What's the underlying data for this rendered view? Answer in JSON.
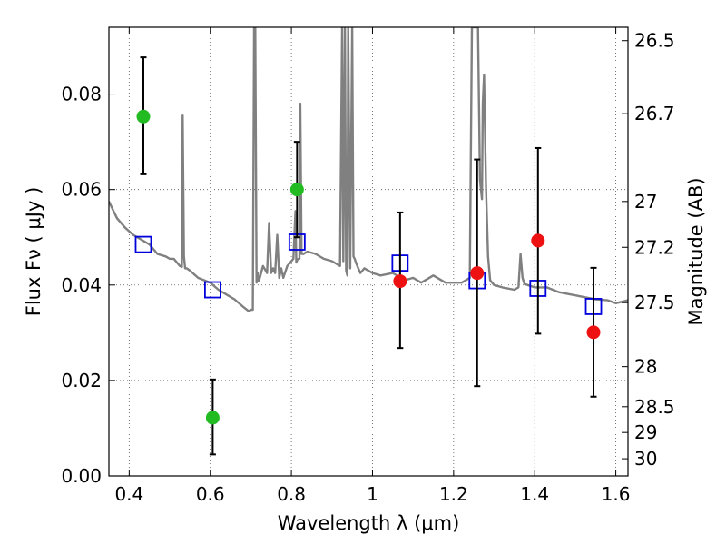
{
  "chart_data": {
    "type": "scatter",
    "xlabel": "Wavelength  λ (μm)",
    "ylabel": "Flux  Fν  ( μJy )",
    "y2label": "Magnitude (AB)",
    "xlim": [
      0.35,
      1.63
    ],
    "ylim": [
      0.0,
      0.094
    ],
    "x_ticks": [
      0.4,
      0.6,
      0.8,
      1.0,
      1.2,
      1.4,
      1.6
    ],
    "x_tick_labels": [
      "0.4",
      "0.6",
      "0.8",
      "1",
      "1.2",
      "1.4",
      "1.6"
    ],
    "y_ticks": [
      0.0,
      0.02,
      0.04,
      0.06,
      0.08
    ],
    "y_tick_labels": [
      "0.00",
      "0.02",
      "0.04",
      "0.06",
      "0.08"
    ],
    "y2_ticks": [
      {
        "flux": 0.0912,
        "label": "26.5"
      },
      {
        "flux": 0.0759,
        "label": "26.7"
      },
      {
        "flux": 0.0575,
        "label": "27"
      },
      {
        "flux": 0.0479,
        "label": "27.2"
      },
      {
        "flux": 0.0363,
        "label": "27.5"
      },
      {
        "flux": 0.0229,
        "label": "28"
      },
      {
        "flux": 0.0145,
        "label": "28.5"
      },
      {
        "flux": 0.0091,
        "label": "29"
      },
      {
        "flux": 0.0036,
        "label": "30"
      }
    ],
    "grid": true,
    "colors": {
      "model": "#808080",
      "green": "#22bb22",
      "red": "#ee1111",
      "blue_square": "#0000dd",
      "errorbar": "#000000"
    },
    "series": [
      {
        "style": "model-spectrum-line",
        "x": [
          0.35,
          0.37,
          0.39,
          0.41,
          0.43,
          0.45,
          0.47,
          0.49,
          0.5,
          0.51,
          0.525,
          0.53,
          0.532,
          0.535,
          0.538,
          0.542,
          0.55,
          0.57,
          0.6,
          0.62,
          0.64,
          0.66,
          0.68,
          0.695,
          0.7,
          0.705,
          0.708,
          0.711,
          0.714,
          0.717,
          0.72,
          0.73,
          0.74,
          0.745,
          0.75,
          0.755,
          0.76,
          0.765,
          0.77,
          0.775,
          0.78,
          0.79,
          0.8,
          0.805,
          0.81,
          0.812,
          0.815,
          0.82,
          0.822,
          0.825,
          0.83,
          0.835,
          0.84,
          0.86,
          0.88,
          0.9,
          0.92,
          0.925,
          0.928,
          0.932,
          0.935,
          0.938,
          0.94,
          0.945,
          0.95,
          0.953,
          0.956,
          0.96,
          0.965,
          0.97,
          0.98,
          1.0,
          1.02,
          1.05,
          1.08,
          1.1,
          1.12,
          1.15,
          1.18,
          1.2,
          1.22,
          1.24,
          1.245,
          1.25,
          1.255,
          1.26,
          1.265,
          1.27,
          1.272,
          1.275,
          1.28,
          1.285,
          1.29,
          1.3,
          1.32,
          1.35,
          1.36,
          1.365,
          1.37,
          1.375,
          1.4,
          1.43,
          1.46,
          1.49,
          1.52,
          1.55,
          1.58,
          1.6,
          1.63
        ],
        "y": [
          0.0575,
          0.054,
          0.052,
          0.0505,
          0.0495,
          0.0485,
          0.0465,
          0.046,
          0.0455,
          0.0455,
          0.044,
          0.0438,
          0.0755,
          0.046,
          0.0435,
          0.0435,
          0.043,
          0.0415,
          0.0405,
          0.039,
          0.038,
          0.037,
          0.0355,
          0.0345,
          0.0348,
          0.0348,
          0.094,
          0.094,
          0.0405,
          0.0425,
          0.0408,
          0.044,
          0.0425,
          0.053,
          0.0425,
          0.0435,
          0.0425,
          0.0505,
          0.0415,
          0.0435,
          0.0415,
          0.044,
          0.045,
          0.0455,
          0.0555,
          0.0447,
          0.0454,
          0.0455,
          0.078,
          0.0465,
          0.0465,
          0.0468,
          0.047,
          0.0465,
          0.0455,
          0.045,
          0.044,
          0.094,
          0.045,
          0.094,
          0.043,
          0.042,
          0.094,
          0.0435,
          0.094,
          0.046,
          0.0455,
          0.0445,
          0.0435,
          0.0425,
          0.0435,
          0.0425,
          0.042,
          0.0425,
          0.041,
          0.0415,
          0.0405,
          0.042,
          0.0405,
          0.0405,
          0.0405,
          0.0415,
          0.094,
          0.094,
          0.094,
          0.094,
          0.062,
          0.058,
          0.078,
          0.084,
          0.06,
          0.046,
          0.041,
          0.04,
          0.0395,
          0.039,
          0.0395,
          0.0465,
          0.0415,
          0.0402,
          0.0395,
          0.0395,
          0.0385,
          0.038,
          0.0375,
          0.037,
          0.0368,
          0.0362,
          0.0368
        ]
      },
      {
        "style": "green-circles-with-errorbars",
        "x": [
          0.435,
          0.606,
          0.814
        ],
        "y": [
          0.0753,
          0.0122,
          0.06
        ],
        "yerr_low": [
          0.0632,
          0.0045,
          0.05
        ],
        "yerr_high": [
          0.0877,
          0.0202,
          0.07
        ]
      },
      {
        "style": "red-circles-with-errorbars",
        "x": [
          1.068,
          1.258,
          1.408,
          1.545
        ],
        "y": [
          0.0408,
          0.0425,
          0.0493,
          0.0301
        ],
        "yerr_low": [
          0.0268,
          0.0188,
          0.0298,
          0.0166
        ],
        "yerr_high": [
          0.0552,
          0.0663,
          0.0687,
          0.0436
        ]
      },
      {
        "style": "blue-open-squares",
        "x": [
          0.435,
          0.606,
          0.814,
          1.068,
          1.258,
          1.408,
          1.545
        ],
        "y": [
          0.0485,
          0.039,
          0.049,
          0.0446,
          0.0409,
          0.0393,
          0.0355
        ]
      }
    ]
  }
}
